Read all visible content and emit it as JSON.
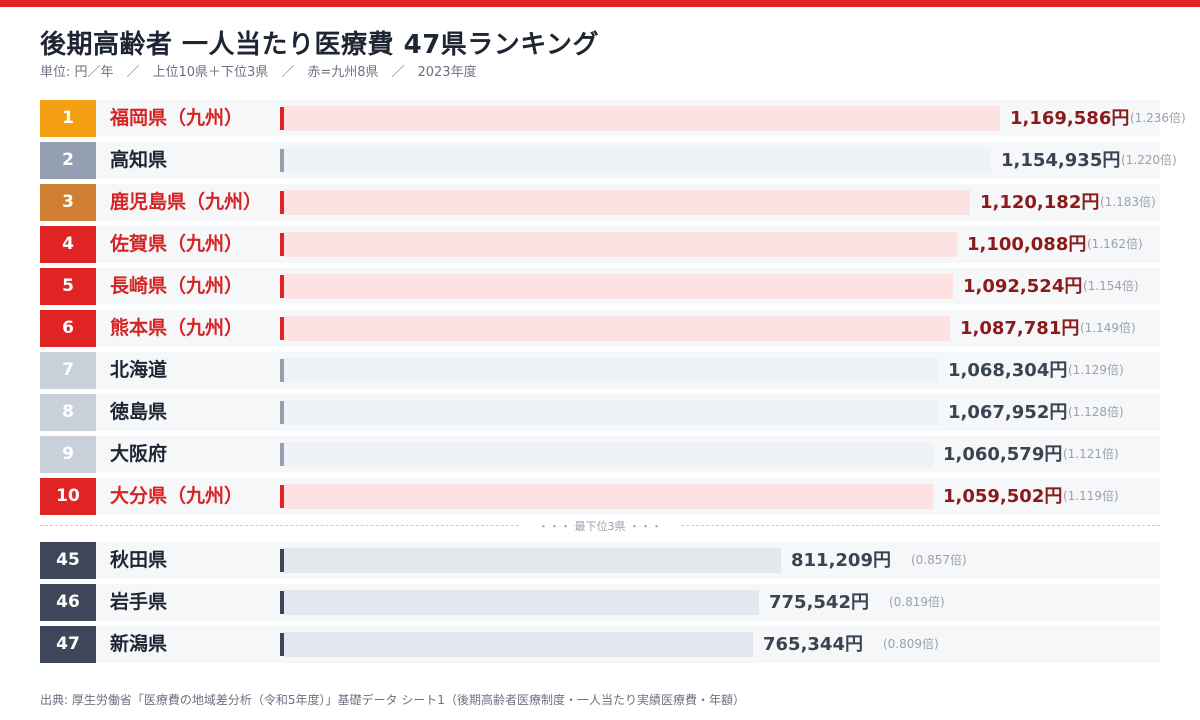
{
  "header": {
    "title": "後期高齢者 一人当たり医療費 47県ランキング",
    "subtitle": "単位: 円／年　／　上位10県＋下位3県　／　赤=九州8県　／　2023年度"
  },
  "divider_label": "・・・ 最下位3県 ・・・",
  "source": "出典: 厚生労働省「医療費の地域差分析（令和5年度）」基礎データ シート1（後期高齢者医療制度・一人当たり実績医療費・年額）",
  "colors": {
    "gold": "#f5a012",
    "silver": "#94a0b2",
    "bronze": "#d07f33",
    "kyushu": "#e02424",
    "normal_rank": "#c8d0da",
    "bottom_rank": "#3d4759",
    "kyushu_bar": "#fde2e4",
    "normal_bar": "#eef1f5",
    "bottom_bar": "#e3e7ee"
  },
  "chart_data": {
    "type": "bar",
    "orientation": "horizontal",
    "title": "後期高齢者 一人当たり医療費 47県ランキング",
    "unit": "円",
    "bars": [
      {
        "rank": "1",
        "label": "福岡県（九州）",
        "value": 1169586,
        "value_label": "1,169,586円",
        "ratio_label": "(1.236倍)",
        "kyushu": true
      },
      {
        "rank": "2",
        "label": "高知県",
        "value": 1154935,
        "value_label": "1,154,935円",
        "ratio_label": "(1.220倍)",
        "kyushu": false
      },
      {
        "rank": "3",
        "label": "鹿児島県（九州）",
        "value": 1120182,
        "value_label": "1,120,182円",
        "ratio_label": "(1.183倍)",
        "kyushu": true
      },
      {
        "rank": "4",
        "label": "佐賀県（九州）",
        "value": 1100088,
        "value_label": "1,100,088円",
        "ratio_label": "(1.162倍)",
        "kyushu": true
      },
      {
        "rank": "5",
        "label": "長崎県（九州）",
        "value": 1092524,
        "value_label": "1,092,524円",
        "ratio_label": "(1.154倍)",
        "kyushu": true
      },
      {
        "rank": "6",
        "label": "熊本県（九州）",
        "value": 1087781,
        "value_label": "1,087,781円",
        "ratio_label": "(1.149倍)",
        "kyushu": true
      },
      {
        "rank": "7",
        "label": "北海道",
        "value": 1068304,
        "value_label": "1,068,304円",
        "ratio_label": "(1.129倍)",
        "kyushu": false
      },
      {
        "rank": "8",
        "label": "徳島県",
        "value": 1067952,
        "value_label": "1,067,952円",
        "ratio_label": "(1.128倍)",
        "kyushu": false
      },
      {
        "rank": "9",
        "label": "大阪府",
        "value": 1060579,
        "value_label": "1,060,579円",
        "ratio_label": "(1.121倍)",
        "kyushu": false
      },
      {
        "rank": "10",
        "label": "大分県（九州）",
        "value": 1059502,
        "value_label": "1,059,502円",
        "ratio_label": "(1.119倍)",
        "kyushu": true
      },
      {
        "rank": "45",
        "label": "秋田県",
        "value": 811209,
        "value_label": "811,209円",
        "ratio_label": "(0.857倍)",
        "kyushu": false
      },
      {
        "rank": "46",
        "label": "岩手県",
        "value": 775542,
        "value_label": "775,542円",
        "ratio_label": "(0.819倍)",
        "kyushu": false
      },
      {
        "rank": "47",
        "label": "新潟県",
        "value": 765344,
        "value_label": "765,344円",
        "ratio_label": "(0.809倍)",
        "kyushu": false
      }
    ]
  }
}
